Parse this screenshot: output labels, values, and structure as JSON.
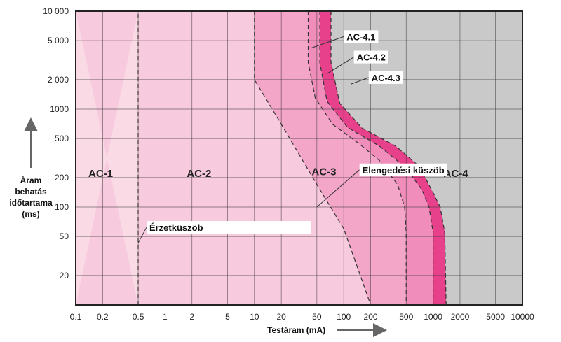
{
  "chart_data": {
    "type": "area",
    "title": "",
    "xlabel": "Testáram (mA)",
    "ylabel_lines": [
      "Áram",
      "behatás",
      "időtartama",
      "(ms)"
    ],
    "x_scale": "log",
    "y_scale": "log",
    "xlim": [
      0.1,
      10000
    ],
    "ylim": [
      10,
      10000
    ],
    "x_ticks": [
      0.1,
      0.2,
      0.5,
      1,
      2,
      5,
      10,
      20,
      50,
      100,
      200,
      500,
      1000,
      2000,
      5000,
      10000
    ],
    "x_tick_labels": [
      "0.1",
      "0.2",
      "0.5",
      "1",
      "2",
      "5",
      "10",
      "20",
      "50",
      "100",
      "200",
      "500",
      "1000",
      "2000",
      "5000",
      "10000"
    ],
    "y_ticks": [
      20,
      50,
      100,
      200,
      500,
      1000,
      2000,
      5000,
      10000
    ],
    "y_tick_labels": [
      "20",
      "50",
      "100",
      "200",
      "500",
      "1000",
      "2 000",
      "5 000",
      "10 000"
    ],
    "grid": true,
    "zones": [
      {
        "name": "AC-1",
        "label_at": [
          0.19,
          220
        ],
        "color": "#fadbe5"
      },
      {
        "name": "AC-2",
        "label_at": [
          2.4,
          220
        ],
        "color": "#f8cade"
      },
      {
        "name": "AC-3",
        "label_at": [
          60,
          230
        ],
        "color": "#f4a6c9"
      },
      {
        "name": "AC-4",
        "label_at": [
          1800,
          220
        ],
        "color": "#c9c9c9"
      }
    ],
    "curves": [
      {
        "name": "Érzetküszöb",
        "style": "dashed",
        "points": [
          [
            0.5,
            10
          ],
          [
            0.5,
            10000
          ]
        ]
      },
      {
        "name": "Elengedési küszöb",
        "style": "dashed",
        "points": [
          [
            10,
            10000
          ],
          [
            10,
            2000
          ],
          [
            20,
            700
          ],
          [
            50,
            170
          ],
          [
            100,
            60
          ],
          [
            200,
            10
          ]
        ]
      },
      {
        "name": "AC-4.1",
        "style": "dashed",
        "points": [
          [
            40,
            10000
          ],
          [
            40,
            3000
          ],
          [
            48,
            1300
          ],
          [
            75,
            700
          ],
          [
            150,
            440
          ],
          [
            250,
            300
          ],
          [
            400,
            170
          ],
          [
            480,
            100
          ],
          [
            500,
            55
          ],
          [
            500,
            10
          ]
        ]
      },
      {
        "name": "AC-4.2",
        "style": "dashed",
        "points": [
          [
            54,
            10000
          ],
          [
            54,
            3000
          ],
          [
            65,
            1200
          ],
          [
            110,
            650
          ],
          [
            250,
            420
          ],
          [
            500,
            250
          ],
          [
            750,
            150
          ],
          [
            900,
            100
          ],
          [
            1000,
            55
          ],
          [
            1000,
            10
          ]
        ]
      },
      {
        "name": "AC-4.3",
        "style": "dashed",
        "points": [
          [
            72,
            10000
          ],
          [
            72,
            3000
          ],
          [
            90,
            1150
          ],
          [
            160,
            640
          ],
          [
            380,
            420
          ],
          [
            700,
            260
          ],
          [
            1000,
            140
          ],
          [
            1200,
            100
          ],
          [
            1350,
            55
          ],
          [
            1400,
            10
          ]
        ]
      }
    ],
    "annotations": [
      {
        "text": "AC-4.1",
        "box_at": [
          100,
          5500
        ],
        "pointer_to": [
          43,
          4200
        ]
      },
      {
        "text": "AC-4.2",
        "box_at": [
          130,
          3400
        ],
        "pointer_to": [
          65,
          2300
        ]
      },
      {
        "text": "AC-4.3",
        "box_at": [
          190,
          2100
        ],
        "pointer_to": [
          120,
          1800
        ]
      },
      {
        "text": "Elengedési küszöb",
        "box_at": [
          150,
          240
        ],
        "pointer_to": [
          50,
          100
        ]
      },
      {
        "text": "Érzetküszöb",
        "box_at": [
          0.62,
          62
        ],
        "pointer_to": [
          0.5,
          43
        ]
      }
    ]
  }
}
